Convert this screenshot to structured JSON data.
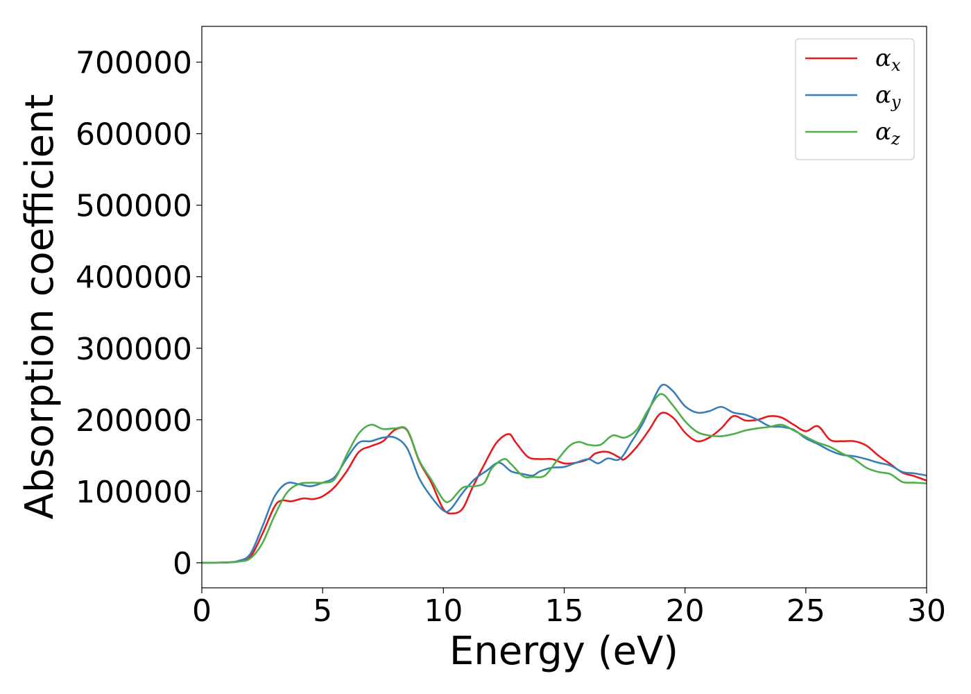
{
  "chart_data": {
    "type": "line",
    "title": "",
    "xlabel": "Energy (eV)",
    "ylabel": "Absorption coefficient",
    "xlim": [
      0,
      30
    ],
    "ylim": [
      -35000,
      750000
    ],
    "xticks": [
      0,
      5,
      10,
      15,
      20,
      25,
      30
    ],
    "yticks": [
      0,
      100000,
      200000,
      300000,
      400000,
      500000,
      600000,
      700000
    ],
    "grid": false,
    "legend_position": "top-right",
    "series": [
      {
        "name": "αx",
        "symbol": "α",
        "subscript": "x",
        "color": "#e41a1c",
        "points": [
          [
            0,
            0
          ],
          [
            1,
            500
          ],
          [
            1.5,
            2000
          ],
          [
            2,
            8000
          ],
          [
            2.5,
            40000
          ],
          [
            3,
            78000
          ],
          [
            3.3,
            87000
          ],
          [
            3.7,
            86000
          ],
          [
            4.2,
            90000
          ],
          [
            4.6,
            89000
          ],
          [
            5,
            93000
          ],
          [
            5.5,
            106000
          ],
          [
            6,
            128000
          ],
          [
            6.5,
            155000
          ],
          [
            7,
            163000
          ],
          [
            7.5,
            170000
          ],
          [
            8,
            186000
          ],
          [
            8.5,
            185000
          ],
          [
            9,
            142000
          ],
          [
            9.5,
            112000
          ],
          [
            10,
            75000
          ],
          [
            10.4,
            69000
          ],
          [
            10.8,
            76000
          ],
          [
            11.2,
            105000
          ],
          [
            11.7,
            138000
          ],
          [
            12.2,
            168000
          ],
          [
            12.7,
            180000
          ],
          [
            13,
            168000
          ],
          [
            13.5,
            148000
          ],
          [
            14,
            145000
          ],
          [
            14.5,
            145000
          ],
          [
            15,
            139000
          ],
          [
            15.5,
            140000
          ],
          [
            16,
            145000
          ],
          [
            16.3,
            153000
          ],
          [
            16.8,
            155000
          ],
          [
            17.3,
            147000
          ],
          [
            17.5,
            145000
          ],
          [
            18,
            162000
          ],
          [
            18.5,
            185000
          ],
          [
            19,
            209000
          ],
          [
            19.5,
            203000
          ],
          [
            20,
            182000
          ],
          [
            20.5,
            170000
          ],
          [
            21,
            175000
          ],
          [
            21.5,
            188000
          ],
          [
            22,
            205000
          ],
          [
            22.5,
            199000
          ],
          [
            23,
            200000
          ],
          [
            23.5,
            205000
          ],
          [
            24,
            203000
          ],
          [
            24.5,
            193000
          ],
          [
            25,
            184000
          ],
          [
            25.5,
            191000
          ],
          [
            26,
            172000
          ],
          [
            26.5,
            170000
          ],
          [
            27,
            170000
          ],
          [
            27.5,
            164000
          ],
          [
            28,
            150000
          ],
          [
            28.5,
            138000
          ],
          [
            29,
            126000
          ],
          [
            29.5,
            121000
          ],
          [
            30,
            115000
          ]
        ]
      },
      {
        "name": "αy",
        "symbol": "α",
        "subscript": "y",
        "color": "#377eb8",
        "points": [
          [
            0,
            0
          ],
          [
            1,
            500
          ],
          [
            1.5,
            2500
          ],
          [
            2,
            12000
          ],
          [
            2.5,
            50000
          ],
          [
            3,
            92000
          ],
          [
            3.5,
            111000
          ],
          [
            4,
            110000
          ],
          [
            4.5,
            107000
          ],
          [
            5,
            112000
          ],
          [
            5.5,
            120000
          ],
          [
            6,
            146000
          ],
          [
            6.5,
            168000
          ],
          [
            7,
            170000
          ],
          [
            7.5,
            175000
          ],
          [
            8,
            175000
          ],
          [
            8.5,
            160000
          ],
          [
            9,
            118000
          ],
          [
            9.5,
            92000
          ],
          [
            10,
            73000
          ],
          [
            10.3,
            75000
          ],
          [
            10.8,
            98000
          ],
          [
            11.3,
            117000
          ],
          [
            11.8,
            129000
          ],
          [
            12.3,
            140000
          ],
          [
            12.8,
            128000
          ],
          [
            13.3,
            124000
          ],
          [
            13.7,
            122000
          ],
          [
            14,
            128000
          ],
          [
            14.5,
            133000
          ],
          [
            15,
            134000
          ],
          [
            15.5,
            140000
          ],
          [
            16,
            145000
          ],
          [
            16.4,
            139000
          ],
          [
            16.8,
            146000
          ],
          [
            17.3,
            145000
          ],
          [
            17.8,
            170000
          ],
          [
            18.3,
            198000
          ],
          [
            18.8,
            236000
          ],
          [
            19.1,
            249000
          ],
          [
            19.5,
            240000
          ],
          [
            20,
            219000
          ],
          [
            20.5,
            210000
          ],
          [
            21,
            212000
          ],
          [
            21.5,
            218000
          ],
          [
            22,
            210000
          ],
          [
            22.5,
            207000
          ],
          [
            23,
            200000
          ],
          [
            23.5,
            191000
          ],
          [
            24,
            190000
          ],
          [
            24.5,
            186000
          ],
          [
            25,
            174000
          ],
          [
            25.5,
            166000
          ],
          [
            26,
            157000
          ],
          [
            26.5,
            151000
          ],
          [
            27,
            149000
          ],
          [
            27.5,
            145000
          ],
          [
            28,
            140000
          ],
          [
            28.5,
            136000
          ],
          [
            29,
            127000
          ],
          [
            29.5,
            125000
          ],
          [
            30,
            122000
          ]
        ]
      },
      {
        "name": "αz",
        "symbol": "α",
        "subscript": "z",
        "color": "#4daf4a",
        "points": [
          [
            0,
            0
          ],
          [
            1,
            300
          ],
          [
            1.5,
            1500
          ],
          [
            2,
            6000
          ],
          [
            2.5,
            27000
          ],
          [
            3,
            65000
          ],
          [
            3.5,
            97000
          ],
          [
            4,
            110000
          ],
          [
            4.5,
            112000
          ],
          [
            5,
            112000
          ],
          [
            5.5,
            117000
          ],
          [
            6,
            151000
          ],
          [
            6.5,
            181000
          ],
          [
            7,
            193000
          ],
          [
            7.5,
            187000
          ],
          [
            8,
            188000
          ],
          [
            8.5,
            186000
          ],
          [
            9,
            143000
          ],
          [
            9.5,
            116000
          ],
          [
            10,
            88000
          ],
          [
            10.3,
            87000
          ],
          [
            10.8,
            105000
          ],
          [
            11.3,
            107000
          ],
          [
            11.7,
            112000
          ],
          [
            12,
            132000
          ],
          [
            12.5,
            145000
          ],
          [
            12.8,
            138000
          ],
          [
            13.3,
            121000
          ],
          [
            13.7,
            120000
          ],
          [
            14.2,
            122000
          ],
          [
            14.7,
            143000
          ],
          [
            15.2,
            163000
          ],
          [
            15.6,
            169000
          ],
          [
            16,
            165000
          ],
          [
            16.5,
            165000
          ],
          [
            17,
            178000
          ],
          [
            17.5,
            175000
          ],
          [
            18,
            186000
          ],
          [
            18.5,
            215000
          ],
          [
            19,
            236000
          ],
          [
            19.5,
            220000
          ],
          [
            20,
            198000
          ],
          [
            20.5,
            183000
          ],
          [
            21,
            178000
          ],
          [
            21.5,
            177000
          ],
          [
            22,
            180000
          ],
          [
            22.5,
            185000
          ],
          [
            23,
            188000
          ],
          [
            23.5,
            190000
          ],
          [
            24,
            193000
          ],
          [
            24.5,
            185000
          ],
          [
            25,
            176000
          ],
          [
            25.5,
            168000
          ],
          [
            26,
            162000
          ],
          [
            26.5,
            153000
          ],
          [
            27,
            145000
          ],
          [
            27.5,
            133000
          ],
          [
            28,
            127000
          ],
          [
            28.5,
            124000
          ],
          [
            29,
            113000
          ],
          [
            29.5,
            112000
          ],
          [
            30,
            111000
          ]
        ]
      }
    ]
  }
}
